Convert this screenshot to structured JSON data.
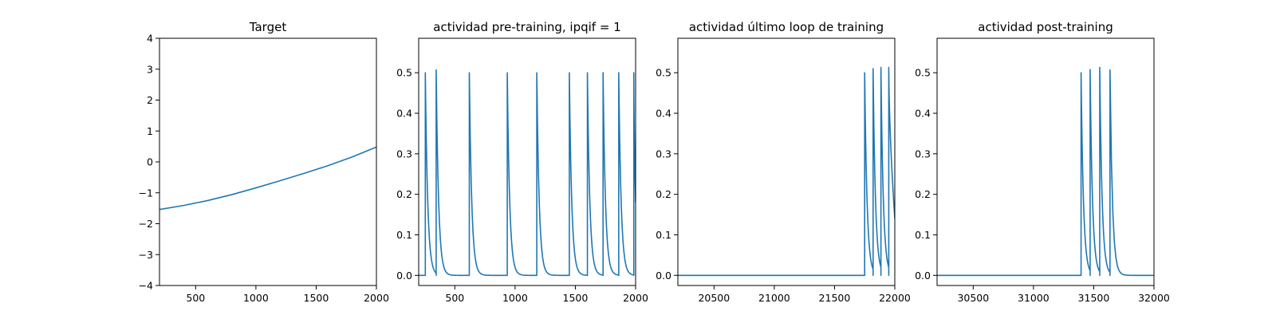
{
  "chart_data": [
    {
      "type": "line",
      "title": "Target",
      "xlim": [
        200,
        2000
      ],
      "ylim": [
        -4,
        4
      ],
      "xticks": [
        500,
        1000,
        1500,
        2000
      ],
      "yticks": [
        -4,
        -3,
        -2,
        -1,
        0,
        1,
        2,
        3,
        4
      ],
      "ytick_decimals": 0,
      "color": "#1f77b4",
      "series": [
        {
          "x": [
            200,
            400,
            600,
            800,
            1000,
            1200,
            1400,
            1600,
            1800,
            2000
          ],
          "values": [
            -1.54,
            -1.41,
            -1.25,
            -1.06,
            -0.84,
            -0.61,
            -0.37,
            -0.12,
            0.16,
            0.48
          ]
        }
      ]
    },
    {
      "type": "line",
      "title": "actividad pre-training, ipqif = 1",
      "xlim": [
        200,
        2000
      ],
      "ylim": [
        -0.025,
        0.585
      ],
      "xticks": [
        500,
        1000,
        1500,
        2000
      ],
      "yticks": [
        0.0,
        0.1,
        0.2,
        0.3,
        0.4,
        0.5
      ],
      "ytick_decimals": 1,
      "color": "#1f77b4",
      "baseline": 0,
      "decay": 20,
      "spikes": [
        {
          "x": 255,
          "peak": 0.5
        },
        {
          "x": 345,
          "peak": 0.507
        },
        {
          "x": 620,
          "peak": 0.5
        },
        {
          "x": 935,
          "peak": 0.5
        },
        {
          "x": 1180,
          "peak": 0.5
        },
        {
          "x": 1450,
          "peak": 0.5
        },
        {
          "x": 1600,
          "peak": 0.5
        },
        {
          "x": 1730,
          "peak": 0.5
        },
        {
          "x": 1860,
          "peak": 0.5
        },
        {
          "x": 1985,
          "peak": 0.5
        }
      ],
      "end_value": 0.18
    },
    {
      "type": "line",
      "title": "actividad último loop de training",
      "xlim": [
        20200,
        22000
      ],
      "ylim": [
        -0.025,
        0.585
      ],
      "xticks": [
        20500,
        21000,
        21500,
        22000
      ],
      "yticks": [
        0.0,
        0.1,
        0.2,
        0.3,
        0.4,
        0.5
      ],
      "ytick_decimals": 1,
      "color": "#1f77b4",
      "baseline": 0,
      "decay": 20,
      "spikes": [
        {
          "x": 21750,
          "peak": 0.5
        },
        {
          "x": 21820,
          "peak": 0.51
        },
        {
          "x": 21885,
          "peak": 0.513
        },
        {
          "x": 21950,
          "peak": 0.513
        }
      ],
      "end_value": 0.14
    },
    {
      "type": "line",
      "title": "actividad post-training",
      "xlim": [
        30200,
        32000
      ],
      "ylim": [
        -0.025,
        0.585
      ],
      "xticks": [
        30500,
        31000,
        31500,
        32000
      ],
      "yticks": [
        0.0,
        0.1,
        0.2,
        0.3,
        0.4,
        0.5
      ],
      "ytick_decimals": 1,
      "color": "#1f77b4",
      "baseline": 0,
      "decay": 20,
      "spikes": [
        {
          "x": 31395,
          "peak": 0.5
        },
        {
          "x": 31470,
          "peak": 0.508
        },
        {
          "x": 31550,
          "peak": 0.513
        },
        {
          "x": 31635,
          "peak": 0.507
        }
      ],
      "end_value": 0.0
    }
  ]
}
